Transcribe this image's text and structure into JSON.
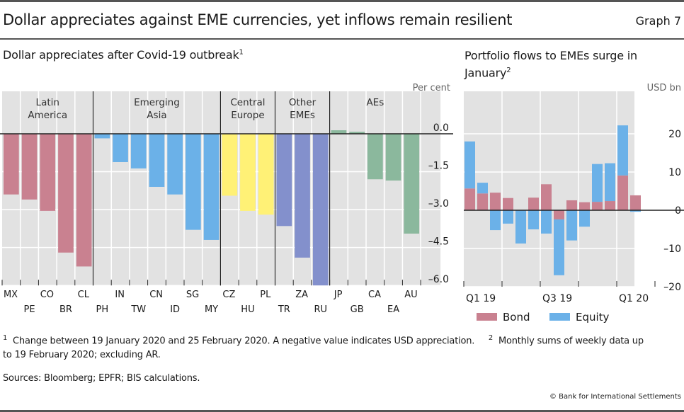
{
  "header": {
    "title": "Dollar appreciates against EME currencies, yet inflows remain resilient",
    "graph_label": "Graph 7"
  },
  "colors": {
    "latin_america": "#c98190",
    "emerging_asia": "#6bb1e8",
    "central_europe": "#fff176",
    "other_emes": "#8390cc",
    "aes": "#8bb89d",
    "bond": "#c98190",
    "equity": "#6bb1e8",
    "plot_bg": "#e2e2e2"
  },
  "chart_data": [
    {
      "type": "bar",
      "title": "Dollar appreciates after Covid-19 outbreak",
      "title_footnote": "1",
      "ylabel": "Per cent",
      "ylim": [
        -6.0,
        0.6
      ],
      "yticks": [
        "0.0",
        "-1.5",
        "-3.0",
        "-4.5",
        "-6.0"
      ],
      "ytick_values": [
        0.0,
        -1.5,
        -3.0,
        -4.5,
        -6.0
      ],
      "y_axis_side": "right",
      "grid": true,
      "groups": [
        {
          "name": "Latin America",
          "lines": [
            "Latin",
            "America"
          ],
          "color_key": "latin_america",
          "categories": [
            "MX",
            "PE",
            "CO",
            "BR",
            "CL"
          ],
          "values": [
            -2.4,
            -2.6,
            -3.05,
            -4.7,
            -5.25
          ]
        },
        {
          "name": "Emerging Asia",
          "lines": [
            "Emerging",
            "Asia"
          ],
          "color_key": "emerging_asia",
          "categories": [
            "PH",
            "IN",
            "TW",
            "CN",
            "ID",
            "SG",
            "MY"
          ],
          "values": [
            -0.18,
            -1.12,
            -1.37,
            -2.1,
            -2.4,
            -3.8,
            -4.2
          ]
        },
        {
          "name": "Central Europe",
          "lines": [
            "Central",
            "Europe"
          ],
          "color_key": "central_europe",
          "categories": [
            "CZ",
            "HU",
            "PL"
          ],
          "values": [
            -2.45,
            -3.05,
            -3.2
          ]
        },
        {
          "name": "Other EMEs",
          "lines": [
            "Other",
            "EMEs"
          ],
          "color_key": "other_emes",
          "categories": [
            "TR",
            "ZA",
            "RU"
          ],
          "values": [
            -3.65,
            -4.9,
            -6.0
          ]
        },
        {
          "name": "AEs",
          "lines": [
            "AEs"
          ],
          "color_key": "aes",
          "categories": [
            "JP",
            "GB",
            "CA",
            "EA",
            "AU"
          ],
          "values": [
            0.14,
            0.08,
            -1.8,
            -1.85,
            -3.95
          ]
        }
      ]
    },
    {
      "type": "bar",
      "stacked": true,
      "title": "Portfolio flows to EMEs surge in January",
      "title_lines": [
        "Portfolio flows to EMEs surge in",
        "January"
      ],
      "title_footnote": "2",
      "ylabel": "USD bn",
      "ylim": [
        -20,
        25
      ],
      "yticks": [
        "20",
        "10",
        "0",
        "–10",
        "–20"
      ],
      "ytick_values": [
        20,
        10,
        0,
        -10,
        -20
      ],
      "y_axis_side": "right",
      "grid": true,
      "x_tick_labels": [
        {
          "label": "Q1 19",
          "month_index": 0
        },
        {
          "label": "Q3 19",
          "month_index": 6
        },
        {
          "label": "Q1 20",
          "month_index": 12
        }
      ],
      "x": [
        "Jan 19",
        "Feb 19",
        "Mar 19",
        "Apr 19",
        "May 19",
        "Jun 19",
        "Jul 19",
        "Aug 19",
        "Sep 19",
        "Oct 19",
        "Nov 19",
        "Dec 19",
        "Jan 20",
        "Feb 20"
      ],
      "series": [
        {
          "name": "Bond",
          "color_key": "bond",
          "values": [
            5.7,
            4.4,
            4.6,
            3.2,
            0.0,
            3.3,
            6.8,
            -2.4,
            2.6,
            2.1,
            2.2,
            2.4,
            9.1,
            3.9
          ]
        },
        {
          "name": "Equity",
          "color_key": "equity",
          "values": [
            12.3,
            2.8,
            -5.2,
            -3.5,
            -8.7,
            -5.0,
            -6.1,
            -14.6,
            -7.9,
            -4.3,
            9.9,
            9.9,
            13.1,
            -0.4
          ]
        }
      ],
      "legend": [
        "Bond",
        "Equity"
      ],
      "legend_position": "bottom"
    }
  ],
  "footnotes": {
    "note1_marker": "1",
    "note1": "Change between 19 January 2020 and 25 February 2020. A negative value indicates USD appreciation.",
    "note2_marker": "2",
    "note2_a": "Monthly sums of weekly data up",
    "note2_b": "to 19 February 2020; excluding AR.",
    "sources": "Sources: Bloomberg; EPFR; BIS calculations.",
    "copyright": "© Bank for International Settlements"
  }
}
